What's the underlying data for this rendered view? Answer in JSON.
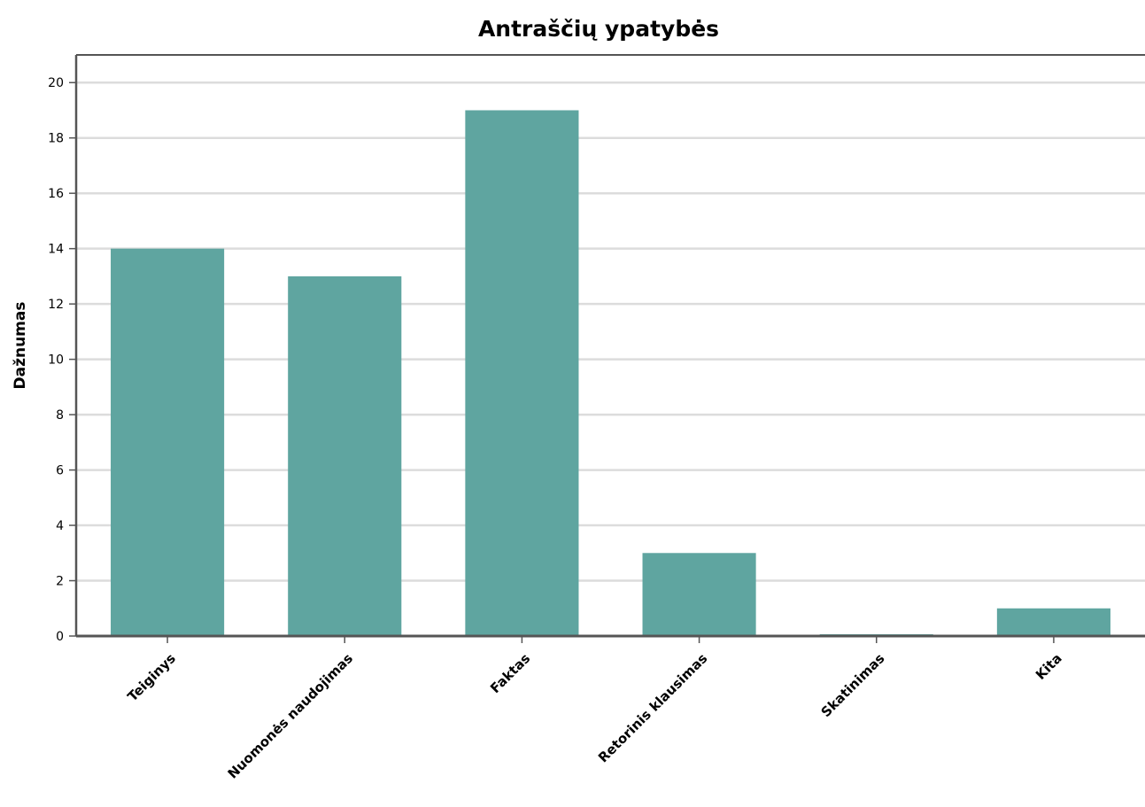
{
  "chart_data": {
    "type": "bar",
    "title": "Antraščių ypatybės",
    "xlabel": "",
    "ylabel": "Dažnumas",
    "categories": [
      "Teiginys",
      "Nuomonės naudojimas",
      "Faktas",
      "Retorinis klausimas",
      "Skatinimas",
      "Kita"
    ],
    "values": [
      14,
      13,
      19,
      3,
      0,
      1
    ],
    "ylim": [
      0,
      21
    ],
    "yticks": [
      0,
      2,
      4,
      6,
      8,
      10,
      12,
      14,
      16,
      18,
      20
    ],
    "grid": true,
    "legend": "none",
    "colors": {
      "bar": "#5fa5a0",
      "grid": "#dcdcdc",
      "axis": "#555555"
    }
  }
}
